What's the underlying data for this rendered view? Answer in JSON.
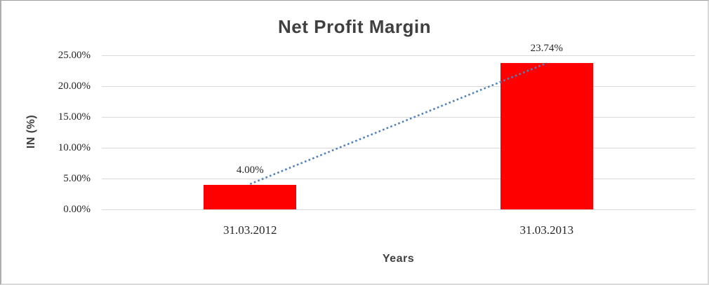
{
  "frame": {
    "background": "#ffffff",
    "border_color": "#bdbdbd"
  },
  "chart_data": {
    "type": "bar",
    "title": "Net Profit Margin",
    "xlabel": "Years",
    "ylabel": "IN (%)",
    "categories": [
      "31.03.2012",
      "31.03.2013"
    ],
    "values": [
      4.0,
      23.74
    ],
    "data_labels": [
      "4.00%",
      "23.74%"
    ],
    "yticks": [
      "0.00%",
      "5.00%",
      "10.00%",
      "15.00%",
      "20.00%",
      "25.00%"
    ],
    "ylim": [
      0,
      25
    ],
    "ytick_step": 5,
    "grid": "horizontal",
    "legend": "none",
    "bar_color": "#ff0000",
    "gridline_color": "#d9d9d9",
    "title_color": "#404040",
    "tick_label_color": "#262626",
    "trendline": {
      "style": "dotted",
      "color": "#4f81bd",
      "from_value": 4.0,
      "to_value": 23.74
    }
  }
}
